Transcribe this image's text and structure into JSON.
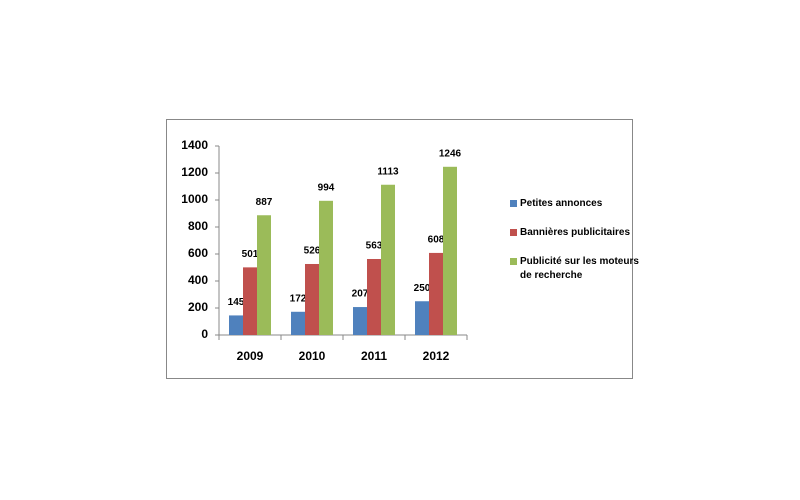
{
  "chart_data": {
    "type": "bar",
    "categories": [
      "2009",
      "2010",
      "2011",
      "2012"
    ],
    "series": [
      {
        "name": "Petites annonces",
        "color": "#4f81bd",
        "values": [
          145,
          172,
          207,
          250
        ]
      },
      {
        "name": "Bannières publicitaires",
        "color": "#c0504d",
        "values": [
          501,
          526,
          563,
          608
        ]
      },
      {
        "name": "Publicité sur les moteurs de recherche",
        "color": "#9bbb59",
        "values": [
          887,
          994,
          1113,
          1246
        ]
      }
    ],
    "ylim": [
      0,
      1400
    ],
    "yticks": [
      0,
      200,
      400,
      600,
      800,
      1000,
      1200,
      1400
    ],
    "grid": false,
    "legend": "right"
  }
}
